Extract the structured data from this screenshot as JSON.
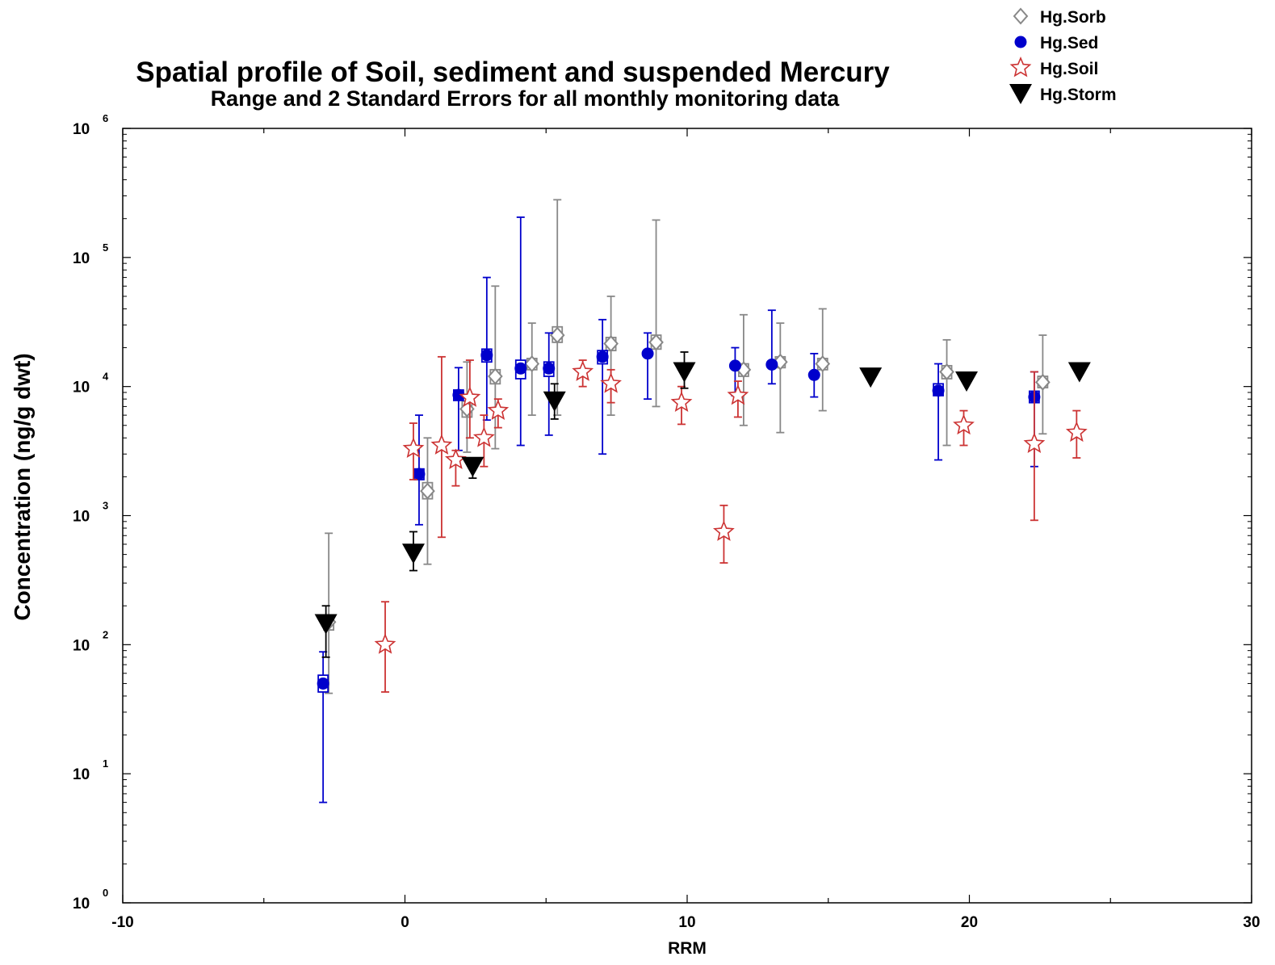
{
  "chart_data": {
    "type": "scatter",
    "title": "Spatial profile of Soil, sediment and suspended Mercury",
    "subtitle": "Range and 2 Standard Errors for all monthly monitoring data",
    "xlabel": "RRM",
    "ylabel": "Concentration (ng/g dwt)",
    "xlim": [
      -10,
      30
    ],
    "ylim": [
      1,
      1000000
    ],
    "yscale": "log",
    "grid": false,
    "legend_position": "top-right",
    "x_ticks": [
      {
        "value": -10,
        "label": "-10"
      },
      {
        "value": 0,
        "label": "0"
      },
      {
        "value": 10,
        "label": "10"
      },
      {
        "value": 20,
        "label": "20"
      },
      {
        "value": 30,
        "label": "30"
      }
    ],
    "y_ticks": [
      {
        "value": 1,
        "base": "10",
        "exp": "0"
      },
      {
        "value": 10,
        "base": "10",
        "exp": "1"
      },
      {
        "value": 100,
        "base": "10",
        "exp": "2"
      },
      {
        "value": 1000,
        "base": "10",
        "exp": "3"
      },
      {
        "value": 10000,
        "base": "10",
        "exp": "4"
      },
      {
        "value": 100000,
        "base": "10",
        "exp": "5"
      },
      {
        "value": 1000000,
        "base": "10",
        "exp": "6"
      }
    ],
    "series": [
      {
        "name": "Hg.Sorb",
        "marker": "diamond-open",
        "color": "#888888",
        "points": [
          {
            "x": -2.7,
            "y": 150,
            "lo": 42,
            "hi": 730,
            "boxlo": 130,
            "boxhi": 170
          },
          {
            "x": 0.8,
            "y": 1550,
            "lo": 420,
            "hi": 4000,
            "boxlo": 1350,
            "boxhi": 1800
          },
          {
            "x": 2.2,
            "y": 6700,
            "lo": 3100,
            "hi": 15500,
            "boxlo": 5800,
            "boxhi": 7700
          },
          {
            "x": 3.2,
            "y": 12000,
            "lo": 3300,
            "hi": 60000,
            "boxlo": 10500,
            "boxhi": 13500
          },
          {
            "x": 4.5,
            "y": 15000,
            "lo": 6000,
            "hi": 31000,
            "boxlo": 13500,
            "boxhi": 16500
          },
          {
            "x": 5.4,
            "y": 25000,
            "lo": 6000,
            "hi": 280000,
            "boxlo": 22000,
            "boxhi": 29000
          },
          {
            "x": 7.3,
            "y": 21500,
            "lo": 6000,
            "hi": 50000,
            "boxlo": 19000,
            "boxhi": 24000
          },
          {
            "x": 8.9,
            "y": 22000,
            "lo": 7000,
            "hi": 195000,
            "boxlo": 19500,
            "boxhi": 25000
          },
          {
            "x": 12.0,
            "y": 13500,
            "lo": 5000,
            "hi": 36000,
            "boxlo": 12000,
            "boxhi": 15000
          },
          {
            "x": 13.3,
            "y": 15500,
            "lo": 4400,
            "hi": 31000,
            "boxlo": 14000,
            "boxhi": 17000
          },
          {
            "x": 14.8,
            "y": 15000,
            "lo": 6500,
            "hi": 40000,
            "boxlo": 13500,
            "boxhi": 16500
          },
          {
            "x": 19.2,
            "y": 13000,
            "lo": 3500,
            "hi": 23000,
            "boxlo": 11500,
            "boxhi": 14500
          },
          {
            "x": 22.6,
            "y": 10800,
            "lo": 4300,
            "hi": 25000,
            "boxlo": 9800,
            "boxhi": 12000
          }
        ]
      },
      {
        "name": "Hg.Sed",
        "marker": "circle-filled",
        "color": "#0000cc",
        "points": [
          {
            "x": -2.9,
            "y": 50,
            "lo": 6,
            "hi": 88,
            "boxlo": 43,
            "boxhi": 58
          },
          {
            "x": 0.5,
            "y": 2100,
            "lo": 850,
            "hi": 6000,
            "boxlo": 1900,
            "boxhi": 2300
          },
          {
            "x": 1.9,
            "y": 8600,
            "lo": 3200,
            "hi": 14000,
            "boxlo": 7800,
            "boxhi": 9400
          },
          {
            "x": 2.9,
            "y": 17500,
            "lo": 5500,
            "hi": 70000,
            "boxlo": 15500,
            "boxhi": 19500
          },
          {
            "x": 4.1,
            "y": 13800,
            "lo": 3500,
            "hi": 205000,
            "boxlo": 11500,
            "boxhi": 16000
          },
          {
            "x": 5.1,
            "y": 13800,
            "lo": 4200,
            "hi": 26000,
            "boxlo": 12000,
            "boxhi": 15500
          },
          {
            "x": 7.0,
            "y": 17000,
            "lo": 3000,
            "hi": 33000,
            "boxlo": 15000,
            "boxhi": 19000
          },
          {
            "x": 8.6,
            "y": 18000,
            "lo": 8000,
            "hi": 26000
          },
          {
            "x": 11.7,
            "y": 14500,
            "lo": 8500,
            "hi": 20000
          },
          {
            "x": 13.0,
            "y": 14800,
            "lo": 10500,
            "hi": 39000
          },
          {
            "x": 14.5,
            "y": 12300,
            "lo": 8300,
            "hi": 18000
          },
          {
            "x": 18.9,
            "y": 9300,
            "lo": 2700,
            "hi": 15000,
            "boxlo": 8500,
            "boxhi": 10500
          },
          {
            "x": 22.3,
            "y": 8300,
            "lo": 2400,
            "hi": 13000,
            "boxlo": 7500,
            "boxhi": 9200
          }
        ]
      },
      {
        "name": "Hg.Soil",
        "marker": "star-open",
        "color": "#cc3333",
        "points": [
          {
            "x": -0.7,
            "y": 100,
            "lo": 43,
            "hi": 215
          },
          {
            "x": 0.3,
            "y": 3300,
            "lo": 1900,
            "hi": 5200
          },
          {
            "x": 1.3,
            "y": 3500,
            "lo": 680,
            "hi": 17000
          },
          {
            "x": 1.8,
            "y": 2700,
            "lo": 1700,
            "hi": 3200
          },
          {
            "x": 2.3,
            "y": 8200,
            "lo": 4000,
            "hi": 16000
          },
          {
            "x": 2.8,
            "y": 4000,
            "lo": 2400,
            "hi": 6000
          },
          {
            "x": 3.3,
            "y": 6500,
            "lo": 4800,
            "hi": 8000
          },
          {
            "x": 6.3,
            "y": 13000,
            "lo": 10000,
            "hi": 16000
          },
          {
            "x": 7.3,
            "y": 10500,
            "lo": 7500,
            "hi": 13500
          },
          {
            "x": 9.8,
            "y": 7500,
            "lo": 5100,
            "hi": 10000
          },
          {
            "x": 11.3,
            "y": 750,
            "lo": 430,
            "hi": 1200
          },
          {
            "x": 11.8,
            "y": 8500,
            "lo": 5800,
            "hi": 11000
          },
          {
            "x": 19.8,
            "y": 5000,
            "lo": 3500,
            "hi": 6500
          },
          {
            "x": 22.3,
            "y": 3600,
            "lo": 920,
            "hi": 13000
          },
          {
            "x": 23.8,
            "y": 4400,
            "lo": 2800,
            "hi": 6500
          }
        ]
      },
      {
        "name": "Hg.Storm",
        "marker": "triangle-down-filled",
        "color": "#000000",
        "points": [
          {
            "x": -2.8,
            "y": 145,
            "lo": 80,
            "hi": 200
          },
          {
            "x": 0.3,
            "y": 510,
            "lo": 375,
            "hi": 750
          },
          {
            "x": 2.4,
            "y": 2400,
            "lo": 1950,
            "hi": 2800
          },
          {
            "x": 5.3,
            "y": 7700,
            "lo": 5600,
            "hi": 10500
          },
          {
            "x": 9.9,
            "y": 13000,
            "lo": 9700,
            "hi": 18500
          },
          {
            "x": 16.5,
            "y": 11800
          },
          {
            "x": 19.9,
            "y": 11000
          },
          {
            "x": 23.9,
            "y": 13000
          }
        ]
      }
    ]
  }
}
